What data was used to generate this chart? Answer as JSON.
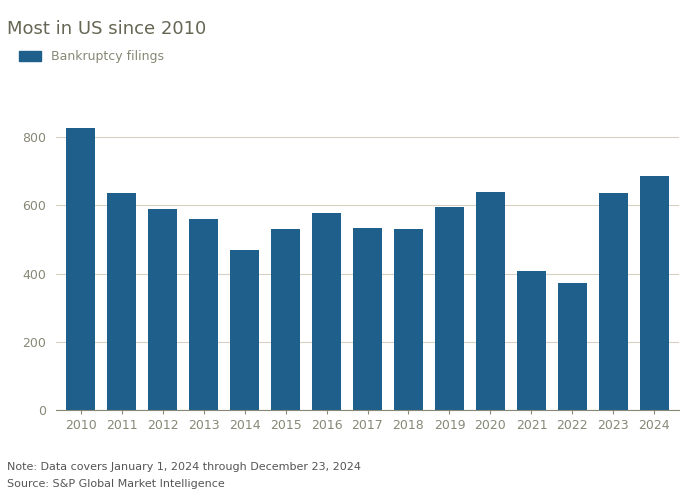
{
  "years": [
    2010,
    2011,
    2012,
    2013,
    2014,
    2015,
    2016,
    2017,
    2018,
    2019,
    2020,
    2021,
    2022,
    2023,
    2024
  ],
  "values": [
    828,
    636,
    590,
    560,
    470,
    532,
    577,
    533,
    530,
    595,
    639,
    408,
    374,
    636,
    686
  ],
  "bar_color": "#1f5f8b",
  "title": "Most in US since 2010",
  "legend_label": "Bankruptcy filings",
  "ylim": [
    0,
    880
  ],
  "yticks": [
    0,
    200,
    400,
    600,
    800
  ],
  "note": "Note: Data covers January 1, 2024 through December 23, 2024",
  "source": "Source: S&P Global Market Intelligence",
  "background_color": "#ffffff",
  "grid_color": "#d8cfc4",
  "title_fontsize": 13,
  "axis_fontsize": 9,
  "legend_fontsize": 9,
  "note_fontsize": 8,
  "title_color": "#666655",
  "tick_color": "#888877",
  "note_color": "#555555"
}
